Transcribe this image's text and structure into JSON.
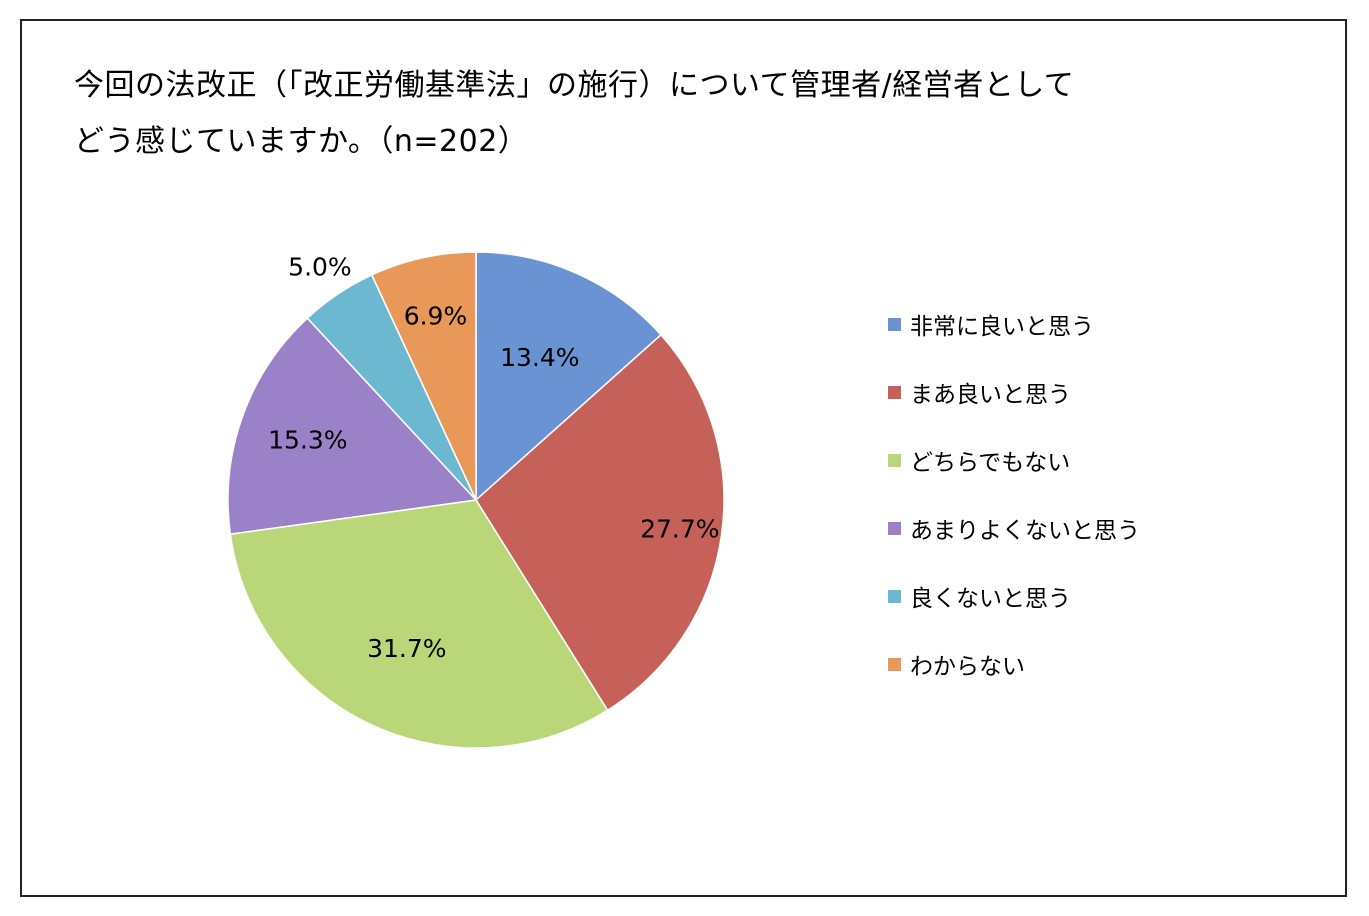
{
  "title": {
    "line1": "今回の法改正（「改正労働基準法」の施行）について管理者/経営者として",
    "line2": "どう感じていますか。（n=202）"
  },
  "chart_data": {
    "type": "pie",
    "title": "今回の法改正（「改正労働基準法」の施行）について管理者/経営者として どう感じていますか。（n=202）",
    "start_angle_deg": 0,
    "direction": "clockwise",
    "legend_position": "right",
    "slices": [
      {
        "label": "非常に良いと思う",
        "value": 13.4,
        "display": "13.4%",
        "color": "#6a93d3"
      },
      {
        "label": "まあ良いと思う",
        "value": 27.7,
        "display": "27.7%",
        "color": "#c6615a"
      },
      {
        "label": "どちらでもない",
        "value": 31.7,
        "display": "31.7%",
        "color": "#b9d679"
      },
      {
        "label": "あまりよくないと思う",
        "value": 15.3,
        "display": "15.3%",
        "color": "#9b81c7"
      },
      {
        "label": "良くないと思う",
        "value": 5.0,
        "display": "5.0%",
        "color": "#6cb8d0"
      },
      {
        "label": "わからない",
        "value": 6.9,
        "display": "6.9%",
        "color": "#e8995a"
      }
    ]
  }
}
